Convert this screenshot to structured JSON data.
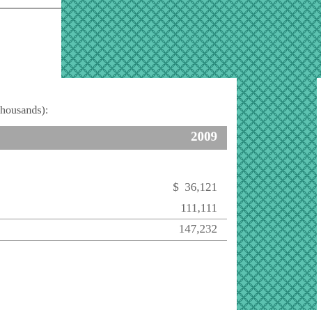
{
  "text": "housands):",
  "table": {
    "header": "2009",
    "rows": [
      "$  36,121",
      "111,111",
      "147,232"
    ]
  }
}
